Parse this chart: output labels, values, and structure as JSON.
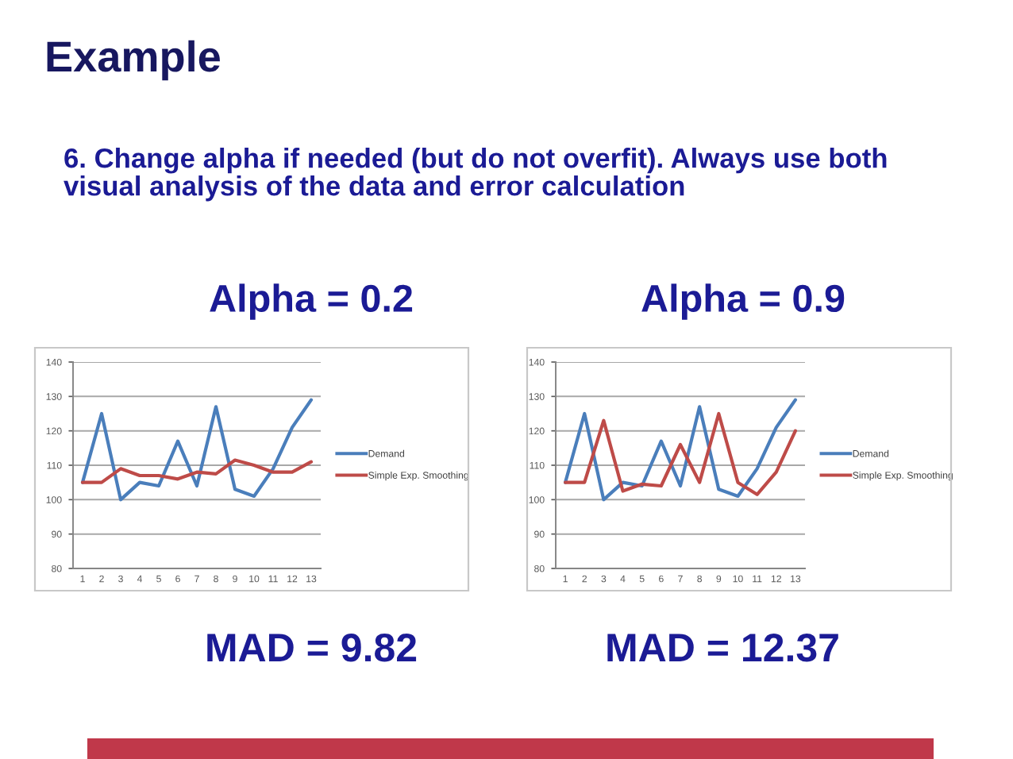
{
  "chart_data": [
    {
      "type": "line",
      "title": "Alpha = 0.2",
      "categories": [
        "1",
        "2",
        "3",
        "4",
        "5",
        "6",
        "7",
        "8",
        "9",
        "10",
        "11",
        "12",
        "13"
      ],
      "series": [
        {
          "name": "Demand",
          "color": "#4a7ebb",
          "values": [
            105,
            125,
            100,
            105,
            104,
            117,
            104,
            127,
            103,
            101,
            109,
            121,
            129
          ]
        },
        {
          "name": "Simple Exp. Smoothing",
          "color": "#be4b48",
          "values": [
            105,
            105,
            109,
            107,
            107,
            106,
            108,
            107.5,
            111.5,
            110,
            108,
            108,
            111
          ]
        }
      ],
      "ylim": [
        80,
        140
      ],
      "yticks": [
        80,
        90,
        100,
        110,
        120,
        130,
        140
      ],
      "grid": "y",
      "legend": "right",
      "annotations": [
        "Example",
        "6. Change alpha if needed (but do not overfit). Always use both visual analysis of the data and error calculation",
        "MAD = 9.82"
      ]
    },
    {
      "type": "line",
      "title": "Alpha = 0.9",
      "categories": [
        "1",
        "2",
        "3",
        "4",
        "5",
        "6",
        "7",
        "8",
        "9",
        "10",
        "11",
        "12",
        "13"
      ],
      "series": [
        {
          "name": "Demand",
          "color": "#4a7ebb",
          "values": [
            105,
            125,
            100,
            105,
            104,
            117,
            104,
            127,
            103,
            101,
            109,
            121,
            129
          ]
        },
        {
          "name": "Simple Exp. Smoothing",
          "color": "#be4b48",
          "values": [
            105,
            105,
            123,
            102.5,
            104.5,
            104,
            116,
            105,
            125,
            105,
            101.5,
            108,
            120
          ]
        }
      ],
      "ylim": [
        80,
        140
      ],
      "yticks": [
        80,
        90,
        100,
        110,
        120,
        130,
        140
      ],
      "grid": "y",
      "legend": "right",
      "annotations": [
        "MAD = 12.37"
      ]
    }
  ]
}
